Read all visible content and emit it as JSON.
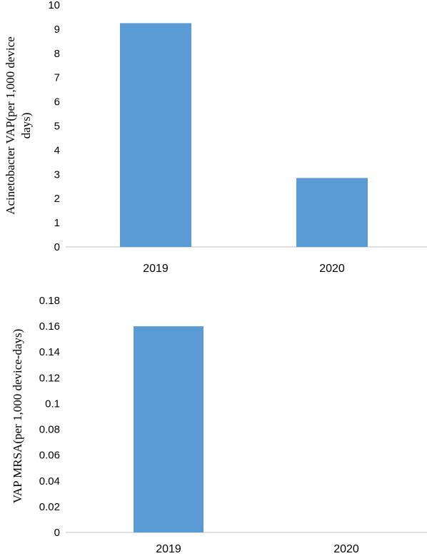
{
  "chart_data": [
    {
      "type": "bar",
      "categories": [
        "2019",
        "2020"
      ],
      "values": [
        9.25,
        2.85
      ],
      "ylabel_lines": [
        "Acinetobacter VAP(per 1,000 device",
        "days)"
      ],
      "xlabel": "",
      "ylim": [
        0,
        10
      ],
      "yticks": [
        "0",
        "1",
        "2",
        "3",
        "4",
        "5",
        "6",
        "7",
        "8",
        "9",
        "10"
      ],
      "bar_color": "#5b9bd5",
      "grid": false
    },
    {
      "type": "bar",
      "categories": [
        "2019",
        "2020"
      ],
      "values": [
        0.16,
        0
      ],
      "ylabel_lines": [
        "VAP MRSA(per 1,000 device-days)"
      ],
      "xlabel": "",
      "ylim": [
        0,
        0.18
      ],
      "yticks": [
        "0",
        "0.02",
        "0.04",
        "0.06",
        "0.08",
        "0.1",
        "0.12",
        "0.14",
        "0.16",
        "0.18"
      ],
      "bar_color": "#5b9bd5",
      "grid": false
    }
  ]
}
